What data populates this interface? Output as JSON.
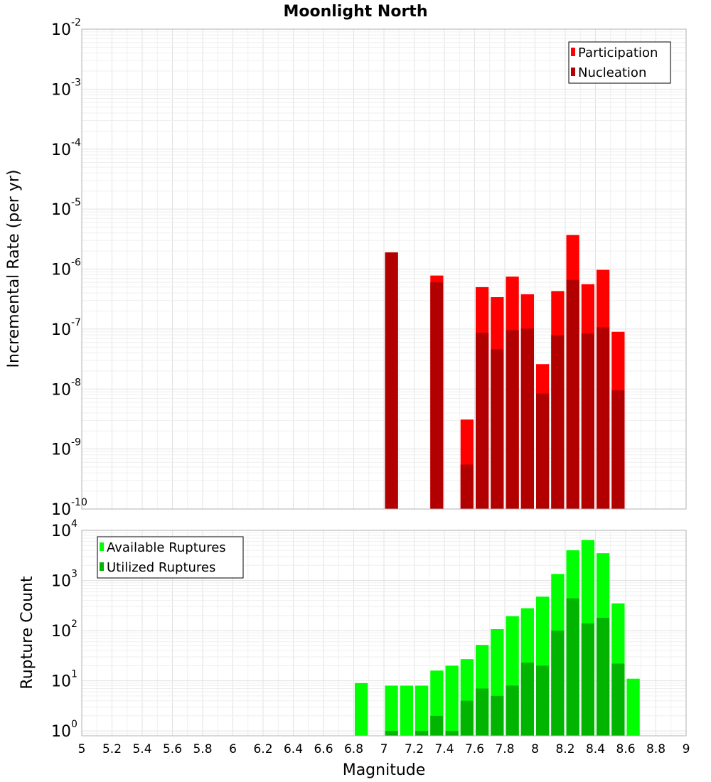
{
  "colors": {
    "participation": "#ff0000",
    "nucleation": "#b20000",
    "available": "#00ff00",
    "utilized": "#00b400"
  },
  "chart_data": [
    {
      "type": "bar",
      "title": "Moonlight North",
      "ylabel": "Incremental Rate (per yr)",
      "y_scale": "log",
      "ylim": [
        1e-10,
        0.01
      ],
      "xlim": [
        5,
        9
      ],
      "bin_width": 0.1,
      "legend_position": "top-right",
      "y_ticks": [
        {
          "base": "10",
          "exp": "-10"
        },
        {
          "base": "10",
          "exp": "-9"
        },
        {
          "base": "10",
          "exp": "-8"
        },
        {
          "base": "10",
          "exp": "-7"
        },
        {
          "base": "10",
          "exp": "-6"
        },
        {
          "base": "10",
          "exp": "-5"
        },
        {
          "base": "10",
          "exp": "-4"
        },
        {
          "base": "10",
          "exp": "-3"
        },
        {
          "base": "10",
          "exp": "-2"
        }
      ],
      "x": [
        7.05,
        7.35,
        7.55,
        7.65,
        7.75,
        7.85,
        7.95,
        8.05,
        8.15,
        8.25,
        8.35,
        8.45,
        8.55
      ],
      "series": [
        {
          "name": "Participation",
          "color_key": "participation",
          "values": [
            1.9e-06,
            7.8e-07,
            3.1e-09,
            5e-07,
            3.4e-07,
            7.5e-07,
            3.8e-07,
            2.6e-08,
            4.3e-07,
            3.7e-06,
            5.6e-07,
            9.7e-07,
            9e-08
          ]
        },
        {
          "name": "Nucleation",
          "color_key": "nucleation",
          "values": [
            1.9e-06,
            6e-07,
            5.5e-10,
            8.7e-08,
            4.6e-08,
            9.6e-08,
            1.02e-07,
            8.4e-09,
            7.9e-08,
            6.6e-07,
            8.4e-08,
            1.07e-07,
            9.5e-09
          ]
        }
      ]
    },
    {
      "type": "bar",
      "xlabel": "Magnitude",
      "ylabel": "Rupture Count",
      "y_scale": "log",
      "ylim": [
        0.8,
        10000
      ],
      "xlim": [
        5,
        9
      ],
      "bin_width": 0.1,
      "legend_position": "top-left",
      "y_ticks": [
        {
          "value": 1,
          "base": "10",
          "exp": "0"
        },
        {
          "value": 10,
          "base": "10",
          "exp": "1"
        },
        {
          "value": 100,
          "base": "10",
          "exp": "2"
        },
        {
          "value": 1000,
          "base": "10",
          "exp": "3"
        },
        {
          "value": 10000,
          "base": "10",
          "exp": "4"
        }
      ],
      "x_ticks": [
        "5",
        "5.2",
        "5.4",
        "5.6",
        "5.8",
        "6",
        "6.2",
        "6.4",
        "6.6",
        "6.8",
        "7",
        "7.2",
        "7.4",
        "7.6",
        "7.8",
        "8",
        "8.2",
        "8.4",
        "8.6",
        "8.8",
        "9"
      ],
      "x": [
        6.85,
        7.05,
        7.15,
        7.25,
        7.35,
        7.45,
        7.55,
        7.65,
        7.75,
        7.85,
        7.95,
        8.05,
        8.15,
        8.25,
        8.35,
        8.45,
        8.55,
        8.65
      ],
      "series": [
        {
          "name": "Available Ruptures",
          "color_key": "available",
          "values": [
            9,
            8,
            8,
            8,
            16,
            20,
            27,
            52,
            107,
            194,
            280,
            476,
            1350,
            4000,
            6400,
            3500,
            350,
            11
          ]
        },
        {
          "name": "Utilized Ruptures",
          "color_key": "utilized",
          "values": [
            0,
            1,
            0,
            1,
            2,
            1,
            4,
            7,
            5,
            8,
            23,
            20,
            100,
            440,
            140,
            180,
            22,
            0
          ]
        }
      ]
    }
  ]
}
